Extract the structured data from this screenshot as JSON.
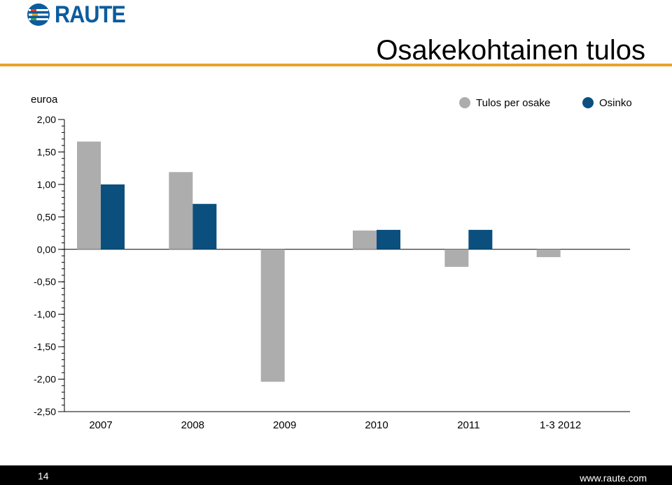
{
  "brand": {
    "name": "RAUTE"
  },
  "title": "Osakekohtainen tulos",
  "footer": {
    "page_number": "14",
    "url": "www.raute.com"
  },
  "colors": {
    "brand": "#0b5c9e",
    "accent": "#e8a22a",
    "series1": "#adadad",
    "series2": "#0b4f7e"
  },
  "chart_data": {
    "type": "bar",
    "unit_label": "euroa",
    "categories": [
      "2007",
      "2008",
      "2009",
      "2010",
      "2011",
      "1-3 2012"
    ],
    "series": [
      {
        "name": "Tulos per osake",
        "values": [
          1.66,
          1.19,
          -2.04,
          0.29,
          -0.27,
          -0.12
        ]
      },
      {
        "name": "Osinko",
        "values": [
          1.0,
          0.7,
          null,
          0.3,
          0.3,
          null
        ]
      }
    ],
    "ylim": [
      -2.5,
      2.0
    ],
    "yticks": [
      "2,00",
      "1,50",
      "1,00",
      "0,50",
      "0,00",
      "-0,50",
      "-1,00",
      "-1,50",
      "-2,00",
      "-2,50"
    ],
    "ytick_values": [
      2.0,
      1.5,
      1.0,
      0.5,
      0.0,
      -0.5,
      -1.0,
      -1.5,
      -2.0,
      -2.5
    ],
    "legend_position": "top-right",
    "grid": false
  }
}
